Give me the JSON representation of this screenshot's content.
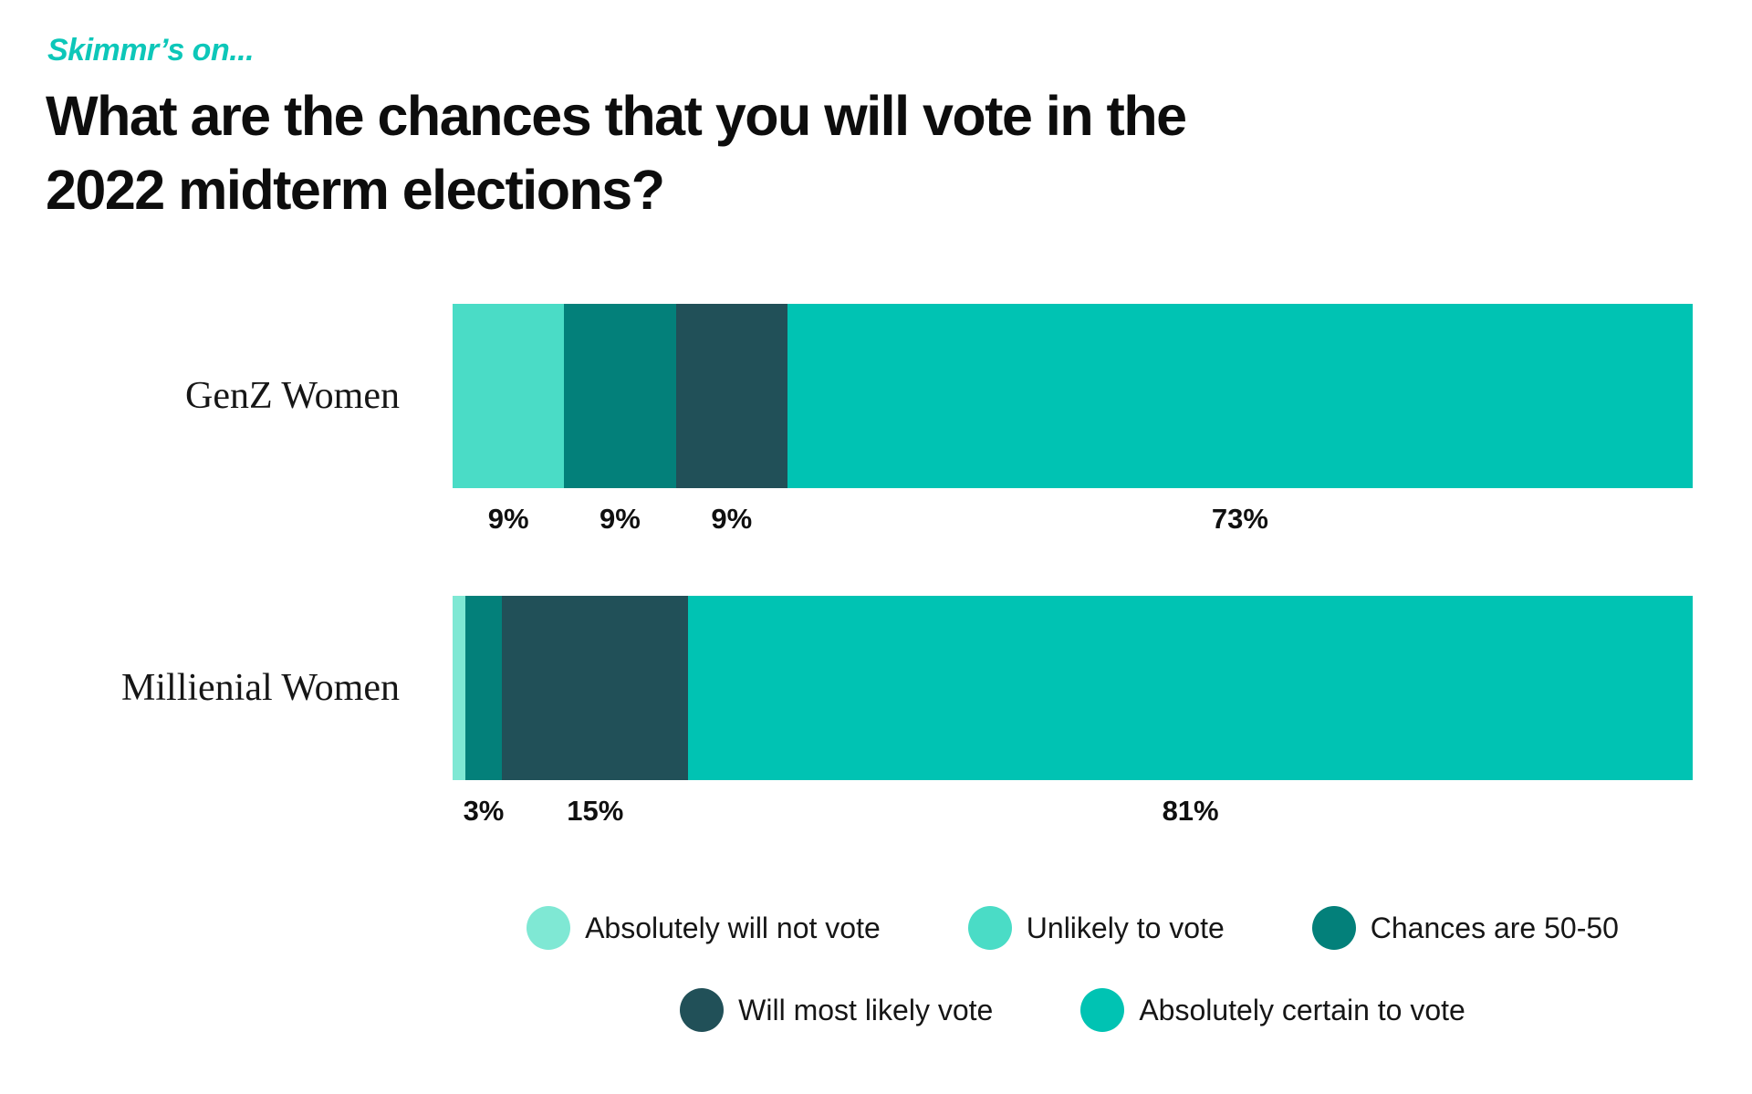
{
  "header": {
    "kicker": "Skimmr’s on...",
    "title_line1": "What are the chances that you will vote in the",
    "title_line2": "2022 midterm elections?"
  },
  "colors": {
    "kicker": "#0DC7B9",
    "title": "#0D0D0D",
    "absolutely_will_not_vote": "#7FE8D4",
    "unlikely_to_vote": "#4ADCC6",
    "chances_are_50_50": "#03807A",
    "will_most_likely_vote": "#215058",
    "absolutely_certain_to_vote": "#00C3B3"
  },
  "chart_data": {
    "type": "bar",
    "orientation": "horizontal",
    "stacked": true,
    "title": "What are the chances that you will vote in the 2022 midterm elections?",
    "kicker": "Skimmr’s on...",
    "categories": [
      "GenZ Women",
      "Millienial Women"
    ],
    "xlim": [
      0,
      100
    ],
    "grid": false,
    "legend_position": "bottom",
    "legend": [
      {
        "label": "Absolutely will not vote",
        "color": "#7FE8D4"
      },
      {
        "label": "Unlikely to vote",
        "color": "#4ADCC6"
      },
      {
        "label": "Chances are 50-50",
        "color": "#03807A"
      },
      {
        "label": "Will most likely vote",
        "color": "#215058"
      },
      {
        "label": "Absolutely certain to vote",
        "color": "#00C3B3"
      }
    ],
    "legend_row_chunks": [
      3,
      2
    ],
    "rows": [
      {
        "category": "GenZ Women",
        "segments": [
          {
            "series": "Unlikely to vote",
            "value": 9,
            "label": "9%"
          },
          {
            "series": "Chances are 50-50",
            "value": 9,
            "label": "9%"
          },
          {
            "series": "Will most likely vote",
            "value": 9,
            "label": "9%"
          },
          {
            "series": "Absolutely certain to vote",
            "value": 73,
            "label": "73%"
          }
        ]
      },
      {
        "category": "Millienial Women",
        "segments": [
          {
            "series": "Absolutely will not vote",
            "value": 1,
            "label": ""
          },
          {
            "series": "Chances are 50-50",
            "value": 3,
            "label": "3%"
          },
          {
            "series": "Will most likely vote",
            "value": 15,
            "label": "15%"
          },
          {
            "series": "Absolutely certain to vote",
            "value": 81,
            "label": "81%"
          }
        ]
      }
    ]
  }
}
